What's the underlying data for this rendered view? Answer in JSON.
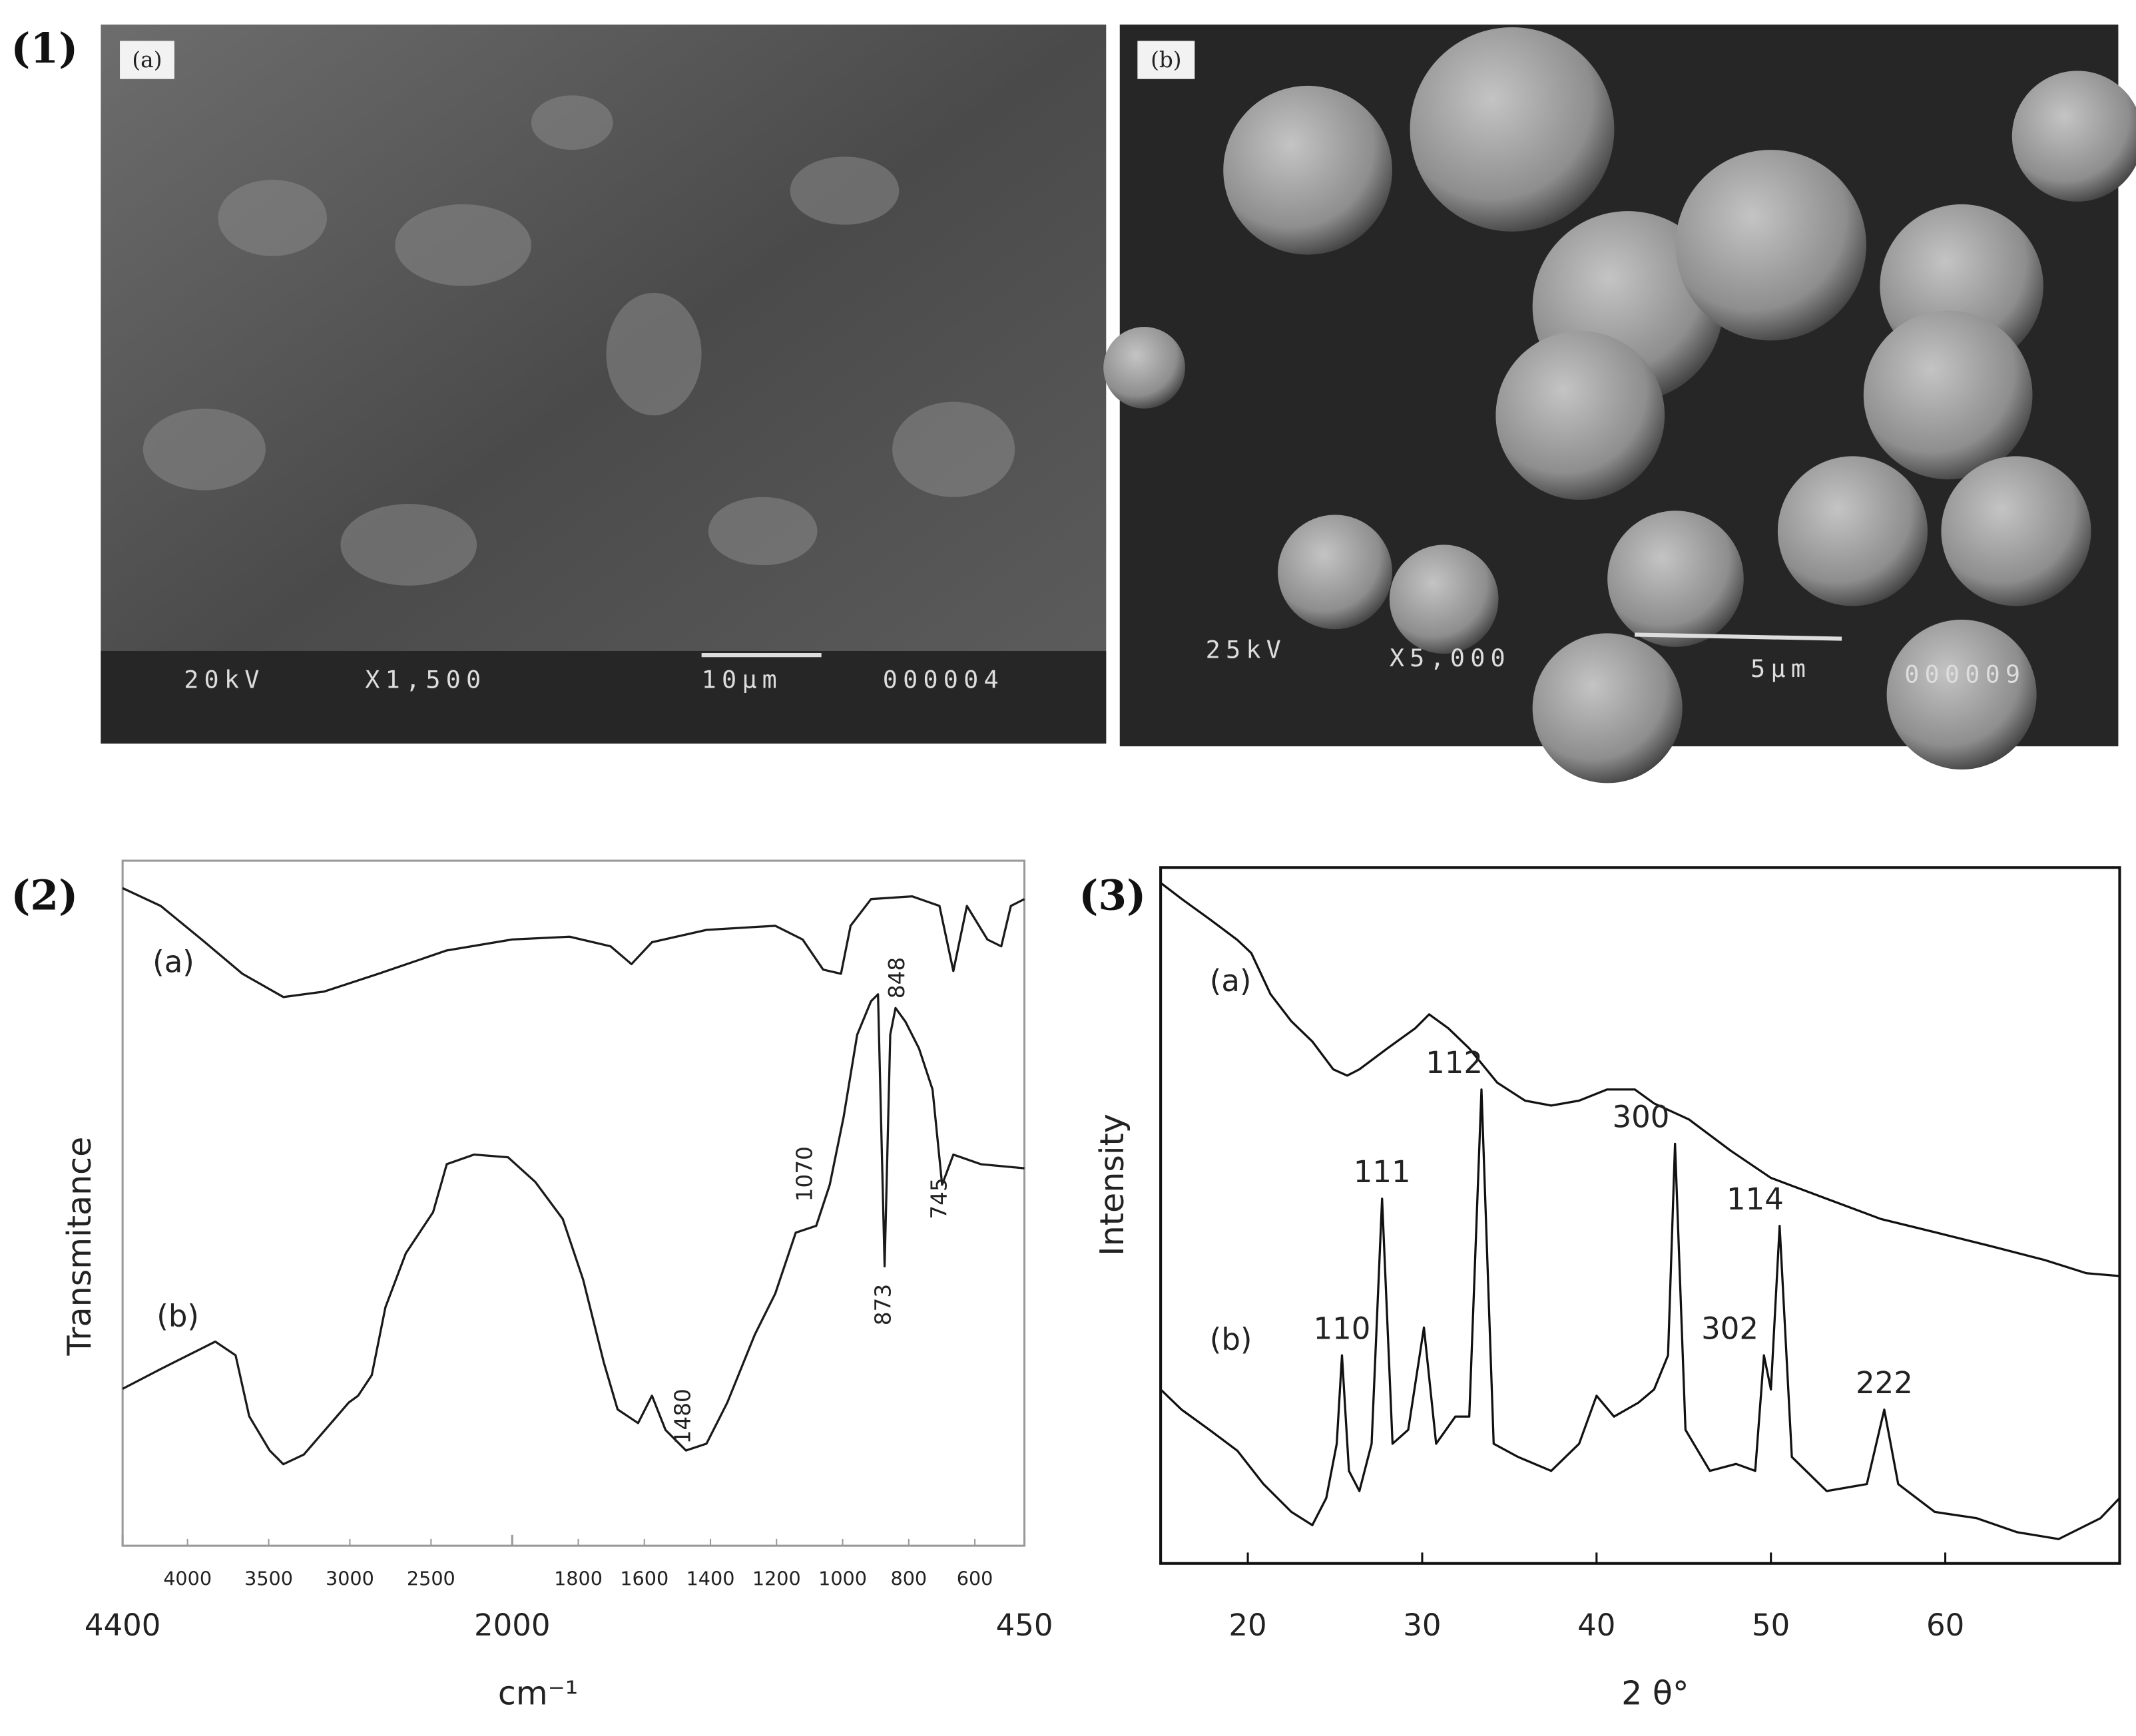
{
  "figure_labels": [
    "(1)",
    "(2)",
    "(3)"
  ],
  "sem_images": [
    {
      "tag": "(a)",
      "voltage": "20kV",
      "magnification": "X1,500",
      "scale_bar": "10μm",
      "image_number": "000004"
    },
    {
      "tag": "(b)",
      "voltage": "25kV",
      "magnification": "X5,000",
      "scale_bar": "5μm",
      "image_number": "000009"
    }
  ],
  "chart_data": [
    {
      "type": "line",
      "xlabel": "cm⁻¹",
      "ylabel": "Transmitance",
      "xlim": [
        4400,
        450
      ],
      "xticks": [
        4400,
        2000,
        450
      ],
      "xticks_inner": [
        4000,
        3500,
        3000,
        2500,
        1800,
        1600,
        1400,
        1200,
        1000,
        800,
        600
      ],
      "ylim": [
        0,
        100
      ],
      "series": [
        {
          "name": "(a)",
          "color": "#1a1a1a",
          "x": [
            4400,
            4165,
            3913,
            3662,
            3410,
            3158,
            2823,
            2403,
            2000,
            1826,
            1702,
            1639,
            1577,
            1412,
            1204,
            1121,
            1059,
            1005,
            976,
            914,
            790,
            707,
            665,
            624,
            562,
            520,
            491,
            450
          ],
          "values": [
            96.0,
            93.4,
            88.5,
            83.5,
            80.1,
            80.9,
            83.5,
            86.9,
            88.5,
            88.9,
            87.5,
            84.9,
            88.1,
            89.9,
            90.5,
            88.5,
            84.1,
            83.5,
            90.5,
            94.4,
            94.8,
            93.4,
            83.9,
            93.4,
            88.5,
            87.5,
            93.4,
            94.4
          ]
        },
        {
          "name": "(b)",
          "color": "#1a1a1a",
          "x": [
            4400,
            4165,
            3913,
            3829,
            3704,
            3620,
            3494,
            3410,
            3284,
            3116,
            3007,
            2949,
            2865,
            2781,
            2655,
            2487,
            2403,
            2235,
            2025,
            1930,
            1847,
            1785,
            1723,
            1681,
            1619,
            1577,
            1536,
            1474,
            1412,
            1349,
            1266,
            1204,
            1142,
            1080,
            1039,
            997,
            956,
            914,
            893,
            873,
            856,
            840,
            810,
            769,
            728,
            699,
            665,
            582,
            450
          ],
          "values": [
            22.9,
            25.8,
            28.8,
            29.8,
            27.8,
            18.9,
            13.9,
            11.9,
            13.3,
            17.9,
            20.9,
            21.9,
            24.9,
            34.8,
            42.7,
            48.7,
            55.7,
            57.1,
            56.7,
            53.1,
            47.7,
            38.8,
            26.8,
            19.9,
            17.9,
            21.9,
            16.9,
            13.9,
            14.9,
            20.9,
            30.8,
            36.8,
            45.7,
            46.7,
            52.7,
            62.6,
            74.6,
            79.5,
            80.5,
            40.8,
            74.6,
            78.5,
            76.5,
            72.6,
            66.6,
            52.7,
            57.1,
            55.7,
            55.1
          ]
        }
      ],
      "peak_labels": [
        1480,
        1070,
        873,
        848,
        745
      ]
    },
    {
      "type": "line",
      "xlabel": "2 θ°",
      "ylabel": "Intensity",
      "xlim": [
        15,
        70
      ],
      "xticks": [
        20,
        30,
        40,
        50,
        60
      ],
      "ylim": [
        0,
        100
      ],
      "series": [
        {
          "name": "(a)",
          "color": "#111111",
          "x": [
            15,
            16.2,
            17.8,
            19.4,
            20.2,
            21.3,
            22.5,
            23.7,
            24.9,
            25.7,
            26.4,
            28.0,
            29.6,
            30.4,
            31.5,
            32.7,
            34.3,
            35.9,
            37.4,
            39.0,
            40.6,
            42.2,
            43.3,
            45.3,
            47.7,
            50.0,
            53.2,
            56.3,
            59.4,
            62.6,
            65.7,
            68.1,
            70
          ],
          "values": [
            97.8,
            95.5,
            92.6,
            89.6,
            87.7,
            81.8,
            77.9,
            75.0,
            71.0,
            70.1,
            71.0,
            74.0,
            76.9,
            78.9,
            76.9,
            74.0,
            69.1,
            66.5,
            65.8,
            66.5,
            68.1,
            68.1,
            66.1,
            63.8,
            59.3,
            55.4,
            52.4,
            49.5,
            47.6,
            45.6,
            43.6,
            41.7,
            41.3
          ]
        },
        {
          "name": "(b)",
          "color": "#111111",
          "x": [
            15,
            16.2,
            17.8,
            19.4,
            20.9,
            22.5,
            23.7,
            24.5,
            25.1,
            25.4,
            25.8,
            26.4,
            27.1,
            27.7,
            28.3,
            29.2,
            30.1,
            30.8,
            31.9,
            32.7,
            33.4,
            34.1,
            35.5,
            37.4,
            39.0,
            40.0,
            41.0,
            42.4,
            43.3,
            44.1,
            44.5,
            45.1,
            46.5,
            48.0,
            49.1,
            49.6,
            50.0,
            50.5,
            51.2,
            53.2,
            55.5,
            56.5,
            57.3,
            59.4,
            61.8,
            64.1,
            66.5,
            68.9,
            70
          ],
          "values": [
            25.0,
            22.1,
            19.2,
            16.2,
            11.4,
            7.4,
            5.5,
            9.4,
            17.2,
            29.9,
            13.3,
            10.4,
            17.2,
            52.4,
            17.2,
            19.2,
            33.9,
            17.2,
            21.1,
            21.1,
            68.1,
            17.2,
            15.3,
            13.3,
            17.2,
            24.1,
            21.1,
            23.1,
            25.0,
            29.9,
            60.3,
            19.2,
            13.3,
            14.3,
            13.3,
            29.9,
            25.0,
            48.5,
            15.3,
            10.4,
            11.4,
            22.1,
            11.4,
            7.4,
            6.5,
            4.5,
            3.5,
            6.5,
            9.4
          ]
        }
      ],
      "peak_labels": [
        {
          "text": "110",
          "x": 25.4
        },
        {
          "text": "111",
          "x": 27.7
        },
        {
          "text": "112",
          "x": 33.4
        },
        {
          "text": "300",
          "x": 44.5
        },
        {
          "text": "302",
          "x": 49.6
        },
        {
          "text": "114",
          "x": 50.5
        },
        {
          "text": "222",
          "x": 56.5
        }
      ]
    }
  ]
}
